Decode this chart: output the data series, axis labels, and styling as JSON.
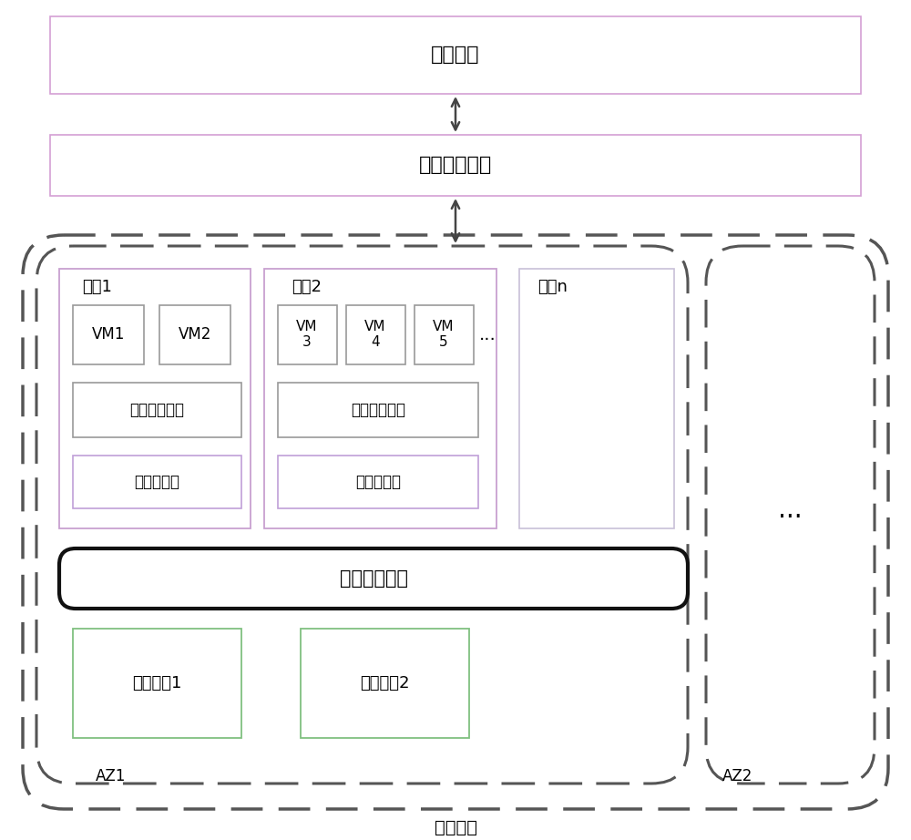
{
  "bg_color": "#ffffff",
  "service_portal_text": "服务门户",
  "cloud_controller_text": "云控制器集群",
  "host1_text": "主机1",
  "host2_text": "主机2",
  "hostn_text": "主机n",
  "vm1_text": "VM1",
  "vm2_text": "VM2",
  "vm3_text": "VM\n3",
  "vm4_text": "VM\n4",
  "vm5_text": "VM\n5",
  "hypervisor1_text": "虚拟机监视器",
  "hypervisor2_text": "虚拟机监视器",
  "multipath1_text": "多路径软件",
  "multipath2_text": "多路径软件",
  "san_text": "存储区域网络",
  "storage1_text": "存储设备1",
  "storage2_text": "存储设备2",
  "az1_text": "AZ1",
  "az2_text": "AZ2",
  "beijing_text": "北京地域",
  "dots_text": "...",
  "dots2_text": "..."
}
